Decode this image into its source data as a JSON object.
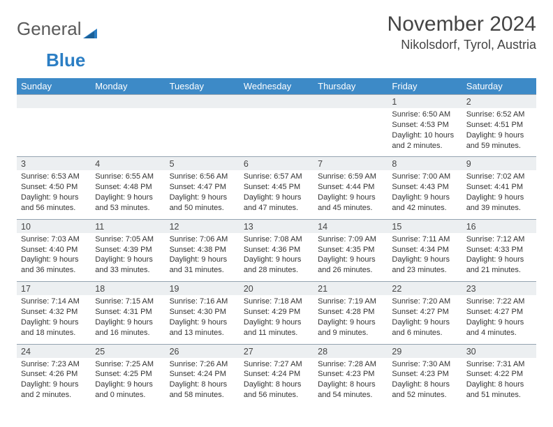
{
  "logo": {
    "text1": "General",
    "text2": "Blue"
  },
  "title": "November 2024",
  "location": "Nikolsdorf, Tyrol, Austria",
  "weekdays": [
    "Sunday",
    "Monday",
    "Tuesday",
    "Wednesday",
    "Thursday",
    "Friday",
    "Saturday"
  ],
  "colors": {
    "header_bg": "#3d8ac7",
    "header_text": "#ffffff",
    "daynum_bg": "#eceff1",
    "border": "#94a3b0",
    "text": "#333333",
    "title_text": "#444444",
    "logo_gray": "#5a5a5a",
    "logo_blue": "#2b7ec4"
  },
  "fonts": {
    "title_size": 30,
    "location_size": 18,
    "weekday_size": 13,
    "daynum_size": 12.5,
    "cell_size": 11
  },
  "layout": {
    "columns": 7,
    "rows": 5,
    "start_weekday_index": 5
  },
  "days": [
    {
      "n": 1,
      "sunrise": "Sunrise: 6:50 AM",
      "sunset": "Sunset: 4:53 PM",
      "daylight1": "Daylight: 10 hours",
      "daylight2": "and 2 minutes."
    },
    {
      "n": 2,
      "sunrise": "Sunrise: 6:52 AM",
      "sunset": "Sunset: 4:51 PM",
      "daylight1": "Daylight: 9 hours",
      "daylight2": "and 59 minutes."
    },
    {
      "n": 3,
      "sunrise": "Sunrise: 6:53 AM",
      "sunset": "Sunset: 4:50 PM",
      "daylight1": "Daylight: 9 hours",
      "daylight2": "and 56 minutes."
    },
    {
      "n": 4,
      "sunrise": "Sunrise: 6:55 AM",
      "sunset": "Sunset: 4:48 PM",
      "daylight1": "Daylight: 9 hours",
      "daylight2": "and 53 minutes."
    },
    {
      "n": 5,
      "sunrise": "Sunrise: 6:56 AM",
      "sunset": "Sunset: 4:47 PM",
      "daylight1": "Daylight: 9 hours",
      "daylight2": "and 50 minutes."
    },
    {
      "n": 6,
      "sunrise": "Sunrise: 6:57 AM",
      "sunset": "Sunset: 4:45 PM",
      "daylight1": "Daylight: 9 hours",
      "daylight2": "and 47 minutes."
    },
    {
      "n": 7,
      "sunrise": "Sunrise: 6:59 AM",
      "sunset": "Sunset: 4:44 PM",
      "daylight1": "Daylight: 9 hours",
      "daylight2": "and 45 minutes."
    },
    {
      "n": 8,
      "sunrise": "Sunrise: 7:00 AM",
      "sunset": "Sunset: 4:43 PM",
      "daylight1": "Daylight: 9 hours",
      "daylight2": "and 42 minutes."
    },
    {
      "n": 9,
      "sunrise": "Sunrise: 7:02 AM",
      "sunset": "Sunset: 4:41 PM",
      "daylight1": "Daylight: 9 hours",
      "daylight2": "and 39 minutes."
    },
    {
      "n": 10,
      "sunrise": "Sunrise: 7:03 AM",
      "sunset": "Sunset: 4:40 PM",
      "daylight1": "Daylight: 9 hours",
      "daylight2": "and 36 minutes."
    },
    {
      "n": 11,
      "sunrise": "Sunrise: 7:05 AM",
      "sunset": "Sunset: 4:39 PM",
      "daylight1": "Daylight: 9 hours",
      "daylight2": "and 33 minutes."
    },
    {
      "n": 12,
      "sunrise": "Sunrise: 7:06 AM",
      "sunset": "Sunset: 4:38 PM",
      "daylight1": "Daylight: 9 hours",
      "daylight2": "and 31 minutes."
    },
    {
      "n": 13,
      "sunrise": "Sunrise: 7:08 AM",
      "sunset": "Sunset: 4:36 PM",
      "daylight1": "Daylight: 9 hours",
      "daylight2": "and 28 minutes."
    },
    {
      "n": 14,
      "sunrise": "Sunrise: 7:09 AM",
      "sunset": "Sunset: 4:35 PM",
      "daylight1": "Daylight: 9 hours",
      "daylight2": "and 26 minutes."
    },
    {
      "n": 15,
      "sunrise": "Sunrise: 7:11 AM",
      "sunset": "Sunset: 4:34 PM",
      "daylight1": "Daylight: 9 hours",
      "daylight2": "and 23 minutes."
    },
    {
      "n": 16,
      "sunrise": "Sunrise: 7:12 AM",
      "sunset": "Sunset: 4:33 PM",
      "daylight1": "Daylight: 9 hours",
      "daylight2": "and 21 minutes."
    },
    {
      "n": 17,
      "sunrise": "Sunrise: 7:14 AM",
      "sunset": "Sunset: 4:32 PM",
      "daylight1": "Daylight: 9 hours",
      "daylight2": "and 18 minutes."
    },
    {
      "n": 18,
      "sunrise": "Sunrise: 7:15 AM",
      "sunset": "Sunset: 4:31 PM",
      "daylight1": "Daylight: 9 hours",
      "daylight2": "and 16 minutes."
    },
    {
      "n": 19,
      "sunrise": "Sunrise: 7:16 AM",
      "sunset": "Sunset: 4:30 PM",
      "daylight1": "Daylight: 9 hours",
      "daylight2": "and 13 minutes."
    },
    {
      "n": 20,
      "sunrise": "Sunrise: 7:18 AM",
      "sunset": "Sunset: 4:29 PM",
      "daylight1": "Daylight: 9 hours",
      "daylight2": "and 11 minutes."
    },
    {
      "n": 21,
      "sunrise": "Sunrise: 7:19 AM",
      "sunset": "Sunset: 4:28 PM",
      "daylight1": "Daylight: 9 hours",
      "daylight2": "and 9 minutes."
    },
    {
      "n": 22,
      "sunrise": "Sunrise: 7:20 AM",
      "sunset": "Sunset: 4:27 PM",
      "daylight1": "Daylight: 9 hours",
      "daylight2": "and 6 minutes."
    },
    {
      "n": 23,
      "sunrise": "Sunrise: 7:22 AM",
      "sunset": "Sunset: 4:27 PM",
      "daylight1": "Daylight: 9 hours",
      "daylight2": "and 4 minutes."
    },
    {
      "n": 24,
      "sunrise": "Sunrise: 7:23 AM",
      "sunset": "Sunset: 4:26 PM",
      "daylight1": "Daylight: 9 hours",
      "daylight2": "and 2 minutes."
    },
    {
      "n": 25,
      "sunrise": "Sunrise: 7:25 AM",
      "sunset": "Sunset: 4:25 PM",
      "daylight1": "Daylight: 9 hours",
      "daylight2": "and 0 minutes."
    },
    {
      "n": 26,
      "sunrise": "Sunrise: 7:26 AM",
      "sunset": "Sunset: 4:24 PM",
      "daylight1": "Daylight: 8 hours",
      "daylight2": "and 58 minutes."
    },
    {
      "n": 27,
      "sunrise": "Sunrise: 7:27 AM",
      "sunset": "Sunset: 4:24 PM",
      "daylight1": "Daylight: 8 hours",
      "daylight2": "and 56 minutes."
    },
    {
      "n": 28,
      "sunrise": "Sunrise: 7:28 AM",
      "sunset": "Sunset: 4:23 PM",
      "daylight1": "Daylight: 8 hours",
      "daylight2": "and 54 minutes."
    },
    {
      "n": 29,
      "sunrise": "Sunrise: 7:30 AM",
      "sunset": "Sunset: 4:23 PM",
      "daylight1": "Daylight: 8 hours",
      "daylight2": "and 52 minutes."
    },
    {
      "n": 30,
      "sunrise": "Sunrise: 7:31 AM",
      "sunset": "Sunset: 4:22 PM",
      "daylight1": "Daylight: 8 hours",
      "daylight2": "and 51 minutes."
    }
  ]
}
